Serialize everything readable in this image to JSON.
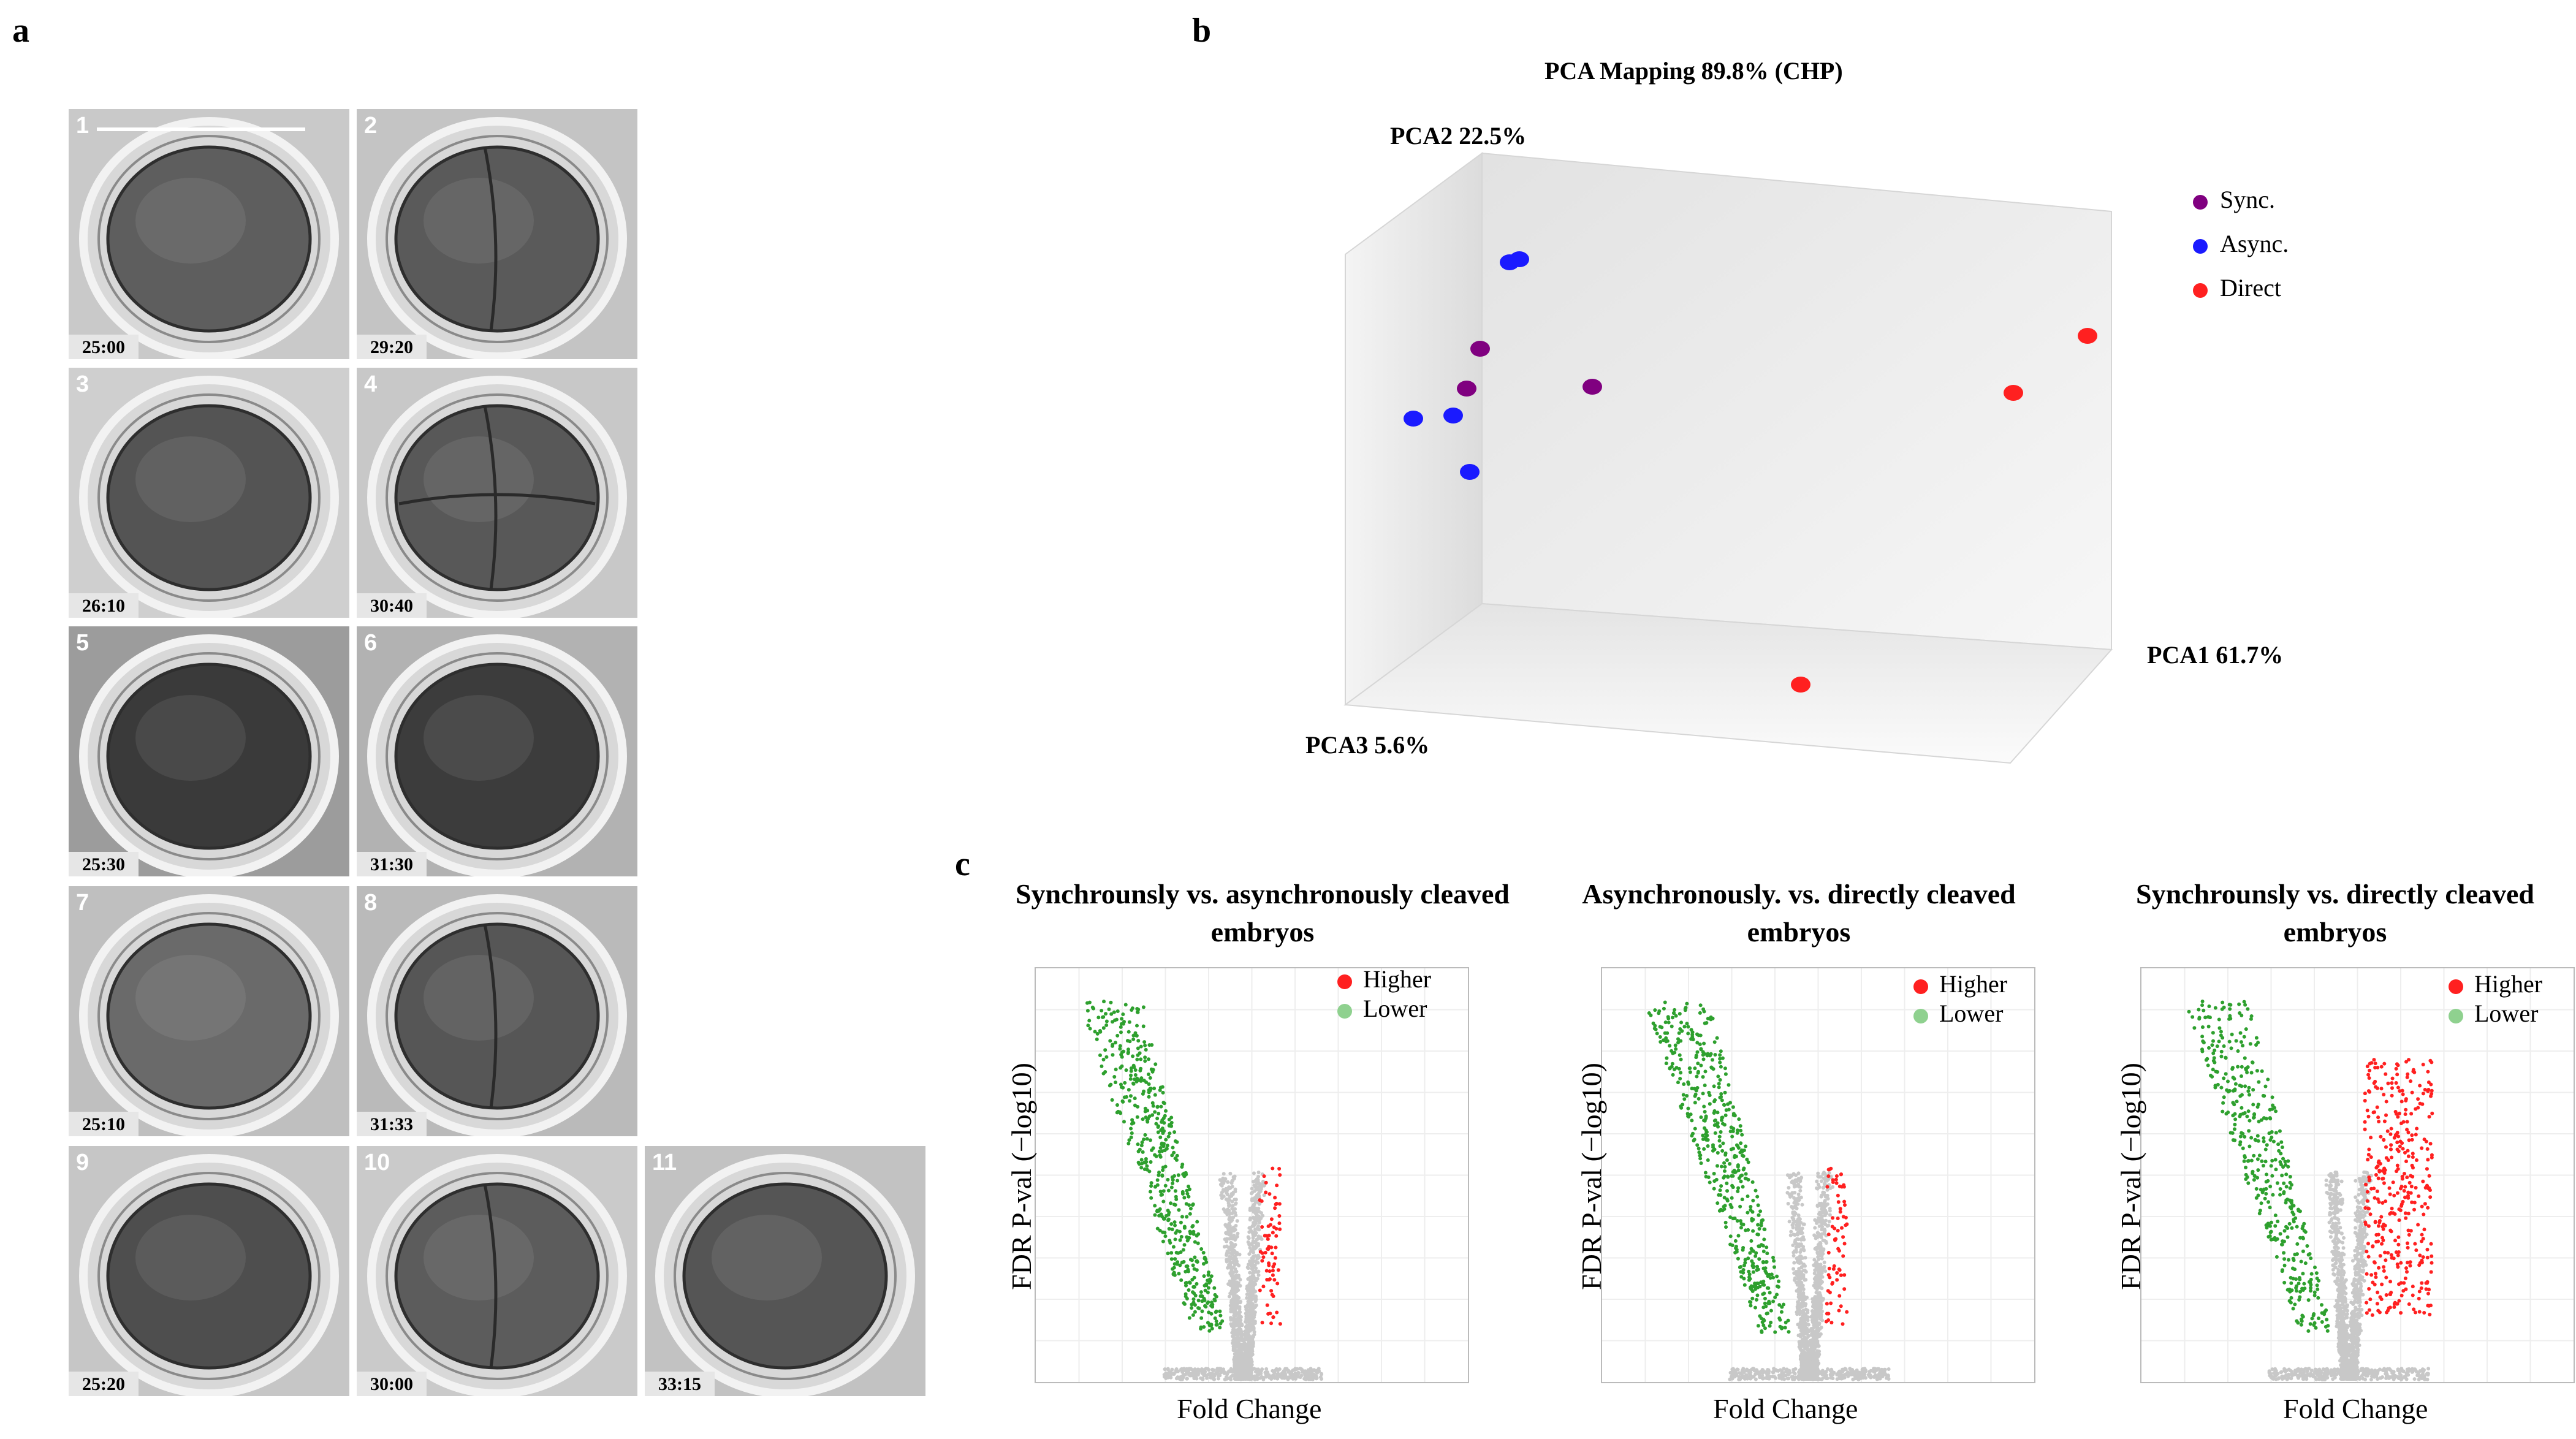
{
  "panels": {
    "a": "a",
    "b": "b",
    "c": "c"
  },
  "micrographs": [
    {
      "num": "1",
      "time": "25:00"
    },
    {
      "num": "2",
      "time": "29:20"
    },
    {
      "num": "3",
      "time": "26:10"
    },
    {
      "num": "4",
      "time": "30:40"
    },
    {
      "num": "5",
      "time": "25:30"
    },
    {
      "num": "6",
      "time": "31:30"
    },
    {
      "num": "7",
      "time": "25:10"
    },
    {
      "num": "8",
      "time": "31:33"
    },
    {
      "num": "9",
      "time": "25:20"
    },
    {
      "num": "10",
      "time": "30:00"
    },
    {
      "num": "11",
      "time": "33:15"
    }
  ],
  "pca": {
    "title": "PCA Mapping 89.8% (CHP)",
    "axes": {
      "pca1": "PCA1 61.7%",
      "pca2": "PCA2 22.5%",
      "pca3": "PCA3 5.6%"
    },
    "legend": [
      {
        "label": "Sync.",
        "color": "#800080"
      },
      {
        "label": "Async.",
        "color": "#1a1aff"
      },
      {
        "label": "Direct",
        "color": "#ff2020"
      }
    ]
  },
  "volcano": [
    {
      "title": "Synchrounsly vs. asynchronously cleaved embryos",
      "ylabel": "FDR P-val (−log10)",
      "xlabel": "Fold Change",
      "higher": "Higher",
      "lower": "Lower"
    },
    {
      "title": "Asynchronously. vs. directly cleaved embryos",
      "ylabel": "FDR P-val (−log10)",
      "xlabel": "Fold Change",
      "higher": "Higher",
      "lower": "Lower"
    },
    {
      "title": "Synchrounsly vs. directly cleaved embryos",
      "ylabel": "FDR P-val (−log10)",
      "xlabel": "Fold Change",
      "higher": "Higher",
      "lower": "Lower"
    }
  ],
  "colors": {
    "higher": "#ff2020",
    "lower": "#8fd18f",
    "bulk": "#c8c8c8",
    "significant_lower": "#2ea02e"
  }
}
